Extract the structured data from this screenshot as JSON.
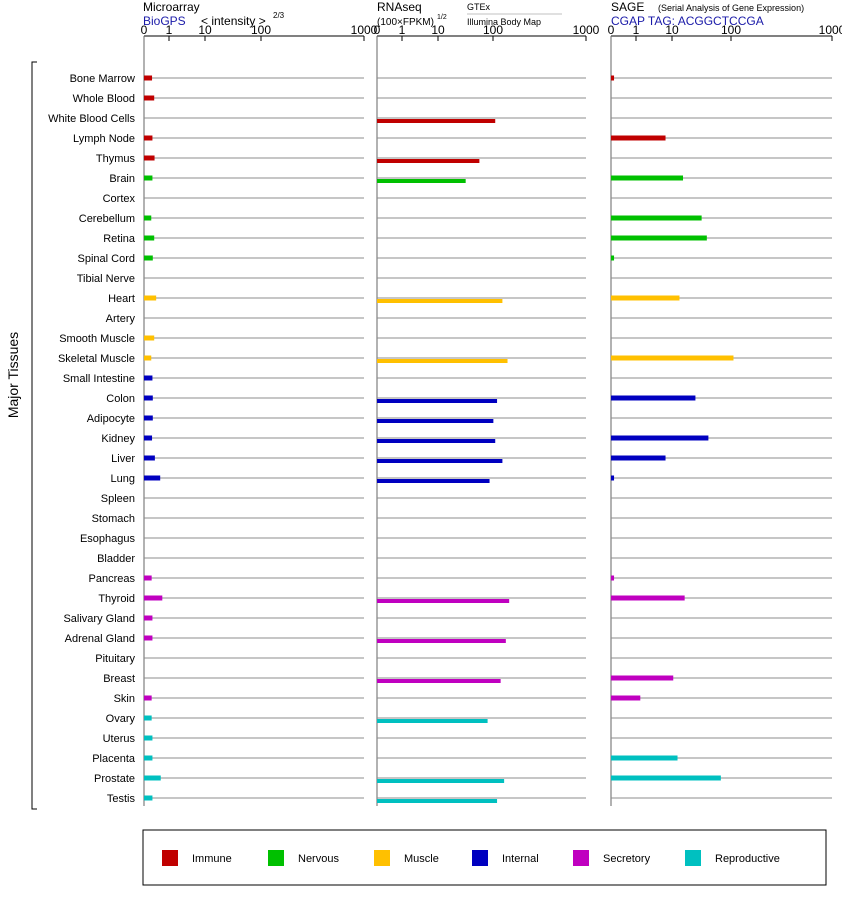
{
  "panels": {
    "microarray": {
      "title": "Microarray",
      "subtitle": "BioGPS",
      "scale_label": "< intensity >",
      "scale_exp": "2/3"
    },
    "rnaseq": {
      "title": "RNAseq",
      "subtitle": "(100×FPKM)",
      "subtitle_exp": "1/2",
      "source_gtex": "GTEx",
      "source_ibm": "Illumina Body Map"
    },
    "sage": {
      "title": "SAGE",
      "title_note": "(Serial Analysis of Gene Expression)",
      "subtitle": "CGAP TAG: ACGGCTCCGA"
    }
  },
  "y_group_label": "Major Tissues",
  "legend": [
    {
      "label": "Immune",
      "color": "#C00000"
    },
    {
      "label": "Nervous",
      "color": "#00C000"
    },
    {
      "label": "Muscle",
      "color": "#FFC000"
    },
    {
      "label": "Internal",
      "color": "#0000C0"
    },
    {
      "label": "Secretory",
      "color": "#C000C0"
    },
    {
      "label": "Reproductive",
      "color": "#00C0C0"
    }
  ],
  "chart_data": [
    {
      "type": "bar",
      "title": "Microarray",
      "subtitle": "BioGPS",
      "xlabel": "< intensity >2/3",
      "x_scale": "power 2/3",
      "xlim": [
        0,
        1000
      ],
      "x_ticks": [
        "0",
        "1",
        "10",
        "100",
        "1000"
      ],
      "categories": [
        "Bone Marrow",
        "Whole Blood",
        "White Blood Cells",
        "Lymph Node",
        "Thymus",
        "Brain",
        "Cortex",
        "Cerebellum",
        "Retina",
        "Spinal Cord",
        "Tibial Nerve",
        "Heart",
        "Artery",
        "Smooth Muscle",
        "Skeletal Muscle",
        "Small Intestine",
        "Colon",
        "Adipocyte",
        "Kidney",
        "Liver",
        "Lung",
        "Spleen",
        "Stomach",
        "Esophagus",
        "Bladder",
        "Pancreas",
        "Thyroid",
        "Salivary Gland",
        "Adrenal Gland",
        "Pituitary",
        "Breast",
        "Skin",
        "Ovary",
        "Uterus",
        "Placenta",
        "Prostate",
        "Testis"
      ],
      "category_groups": [
        "Immune",
        "Immune",
        "Immune",
        "Immune",
        "Immune",
        "Nervous",
        "Nervous",
        "Nervous",
        "Nervous",
        "Nervous",
        "Nervous",
        "Muscle",
        "Muscle",
        "Muscle",
        "Muscle",
        "Internal",
        "Internal",
        "Internal",
        "Internal",
        "Internal",
        "Internal",
        "Internal",
        "Internal",
        "Internal",
        "Internal",
        "Secretory",
        "Secretory",
        "Secretory",
        "Secretory",
        "Secretory",
        "Secretory",
        "Secretory",
        "Reproductive",
        "Reproductive",
        "Reproductive",
        "Reproductive",
        "Reproductive"
      ],
      "series": [
        {
          "values": [
            7,
            10,
            null,
            7.5,
            10.5,
            7.5,
            null,
            6,
            10,
            8,
            null,
            13,
            null,
            10,
            6,
            7.5,
            8,
            8,
            7,
            11,
            20,
            null,
            null,
            null,
            null,
            6.5,
            24,
            7.5,
            7.5,
            null,
            null,
            6.5,
            6.5,
            7.5,
            7.5,
            21,
            7.5
          ]
        }
      ]
    },
    {
      "type": "bar",
      "title": "RNAseq",
      "subtitle": "(100×FPKM)1/2",
      "x_scale": "sqrt",
      "xlim": [
        0,
        1000
      ],
      "x_ticks": [
        "0",
        "1",
        "10",
        "100",
        "1000"
      ],
      "categories": [
        "Bone Marrow",
        "Whole Blood",
        "White Blood Cells",
        "Lymph Node",
        "Thymus",
        "Brain",
        "Cortex",
        "Cerebellum",
        "Retina",
        "Spinal Cord",
        "Tibial Nerve",
        "Heart",
        "Artery",
        "Smooth Muscle",
        "Skeletal Muscle",
        "Small Intestine",
        "Colon",
        "Adipocyte",
        "Kidney",
        "Liver",
        "Lung",
        "Spleen",
        "Stomach",
        "Esophagus",
        "Bladder",
        "Pancreas",
        "Thyroid",
        "Salivary Gland",
        "Adrenal Gland",
        "Pituitary",
        "Breast",
        "Skin",
        "Ovary",
        "Uterus",
        "Placenta",
        "Prostate",
        "Testis"
      ],
      "series": [
        {
          "name": "GTEx",
          "values": [
            null,
            null,
            null,
            null,
            null,
            null,
            null,
            null,
            null,
            null,
            null,
            null,
            null,
            null,
            null,
            null,
            null,
            null,
            null,
            null,
            null,
            null,
            null,
            null,
            null,
            null,
            null,
            null,
            null,
            null,
            null,
            null,
            null,
            null,
            null,
            null,
            null
          ]
        },
        {
          "name": "Illumina Body Map",
          "values": [
            null,
            null,
            320,
            null,
            240,
            180,
            null,
            null,
            null,
            null,
            null,
            360,
            null,
            null,
            390,
            null,
            330,
            310,
            320,
            360,
            290,
            null,
            null,
            null,
            null,
            null,
            400,
            null,
            380,
            null,
            350,
            null,
            280,
            null,
            null,
            370,
            330
          ]
        }
      ]
    },
    {
      "type": "bar",
      "title": "SAGE",
      "subtitle": "CGAP TAG: ACGGCTCCGA",
      "x_scale": "log1p",
      "xlim": [
        0,
        1000
      ],
      "x_ticks": [
        "0",
        "1",
        "10",
        "100",
        "1000"
      ],
      "categories": [
        "Bone Marrow",
        "Whole Blood",
        "White Blood Cells",
        "Lymph Node",
        "Thymus",
        "Brain",
        "Cortex",
        "Cerebellum",
        "Retina",
        "Spinal Cord",
        "Tibial Nerve",
        "Heart",
        "Artery",
        "Smooth Muscle",
        "Skeletal Muscle",
        "Small Intestine",
        "Colon",
        "Adipocyte",
        "Kidney",
        "Liver",
        "Lung",
        "Spleen",
        "Stomach",
        "Esophagus",
        "Bladder",
        "Pancreas",
        "Thyroid",
        "Salivary Gland",
        "Adrenal Gland",
        "Pituitary",
        "Breast",
        "Skin",
        "Ovary",
        "Uterus",
        "Placenta",
        "Prostate",
        "Testis"
      ],
      "series": [
        {
          "values": [
            0.1,
            null,
            null,
            4.5,
            null,
            8.5,
            null,
            16,
            19,
            0.1,
            null,
            7.5,
            null,
            null,
            45,
            null,
            13,
            null,
            20,
            4.5,
            0.1,
            null,
            null,
            null,
            null,
            0.1,
            9,
            null,
            null,
            null,
            6,
            1.5,
            null,
            null,
            7,
            30,
            null
          ]
        }
      ]
    }
  ]
}
